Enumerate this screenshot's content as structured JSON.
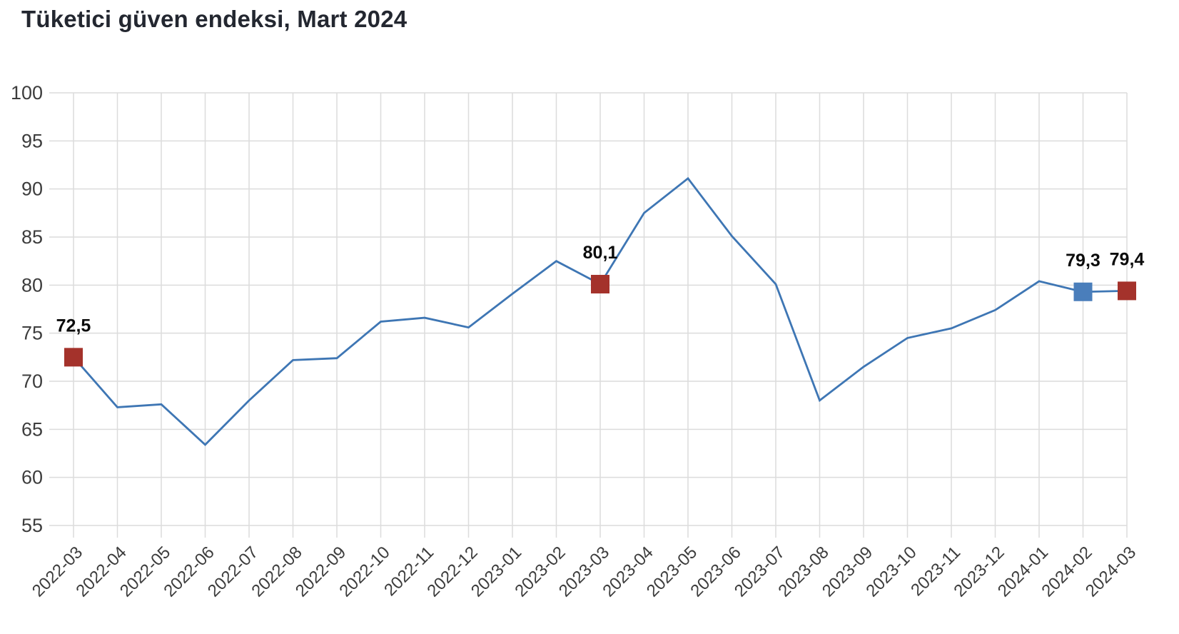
{
  "header": {
    "title": "Tüketici güven endeksi, Mart 2024"
  },
  "chart_data": {
    "type": "line",
    "title": "Tüketici güven endeksi, Mart 2024",
    "xlabel": "",
    "ylabel": "",
    "ylim": [
      55,
      100
    ],
    "yticks": [
      55,
      60,
      65,
      70,
      75,
      80,
      85,
      90,
      95,
      100
    ],
    "grid": true,
    "legend": "none",
    "x_tick_rotation_deg": -45,
    "categories": [
      "2022-03",
      "2022-04",
      "2022-05",
      "2022-06",
      "2022-07",
      "2022-08",
      "2022-09",
      "2022-10",
      "2022-11",
      "2022-12",
      "2023-01",
      "2023-02",
      "2023-03",
      "2023-04",
      "2023-05",
      "2023-06",
      "2023-07",
      "2023-08",
      "2023-09",
      "2023-10",
      "2023-11",
      "2023-12",
      "2024-01",
      "2024-02",
      "2024-03"
    ],
    "series": [
      {
        "name": "Tüketici güven endeksi",
        "values": [
          72.5,
          67.3,
          67.6,
          63.4,
          68.0,
          72.2,
          72.4,
          76.2,
          76.6,
          75.6,
          79.1,
          82.5,
          80.1,
          87.5,
          91.1,
          85.1,
          80.1,
          68.0,
          71.5,
          74.5,
          75.5,
          77.4,
          80.4,
          79.3,
          79.4
        ]
      }
    ],
    "marked_points": [
      {
        "category": "2022-03",
        "value": 72.5,
        "label": "72,5",
        "marker_color": "#A4322B"
      },
      {
        "category": "2023-03",
        "value": 80.1,
        "label": "80,1",
        "marker_color": "#A4322B"
      },
      {
        "category": "2024-02",
        "value": 79.3,
        "label": "79,3",
        "marker_color": "#4A7EBB"
      },
      {
        "category": "2024-03",
        "value": 79.4,
        "label": "79,4",
        "marker_color": "#A4322B"
      }
    ],
    "colors": {
      "line": "#3E76B4",
      "marker_red": "#A4322B",
      "marker_blue": "#4A7EBB",
      "grid": "#DCDCDC",
      "axis_label": "#3D3D3D",
      "data_label": "#0B0B0B",
      "title": "#232730",
      "background": "#FFFFFF"
    }
  }
}
